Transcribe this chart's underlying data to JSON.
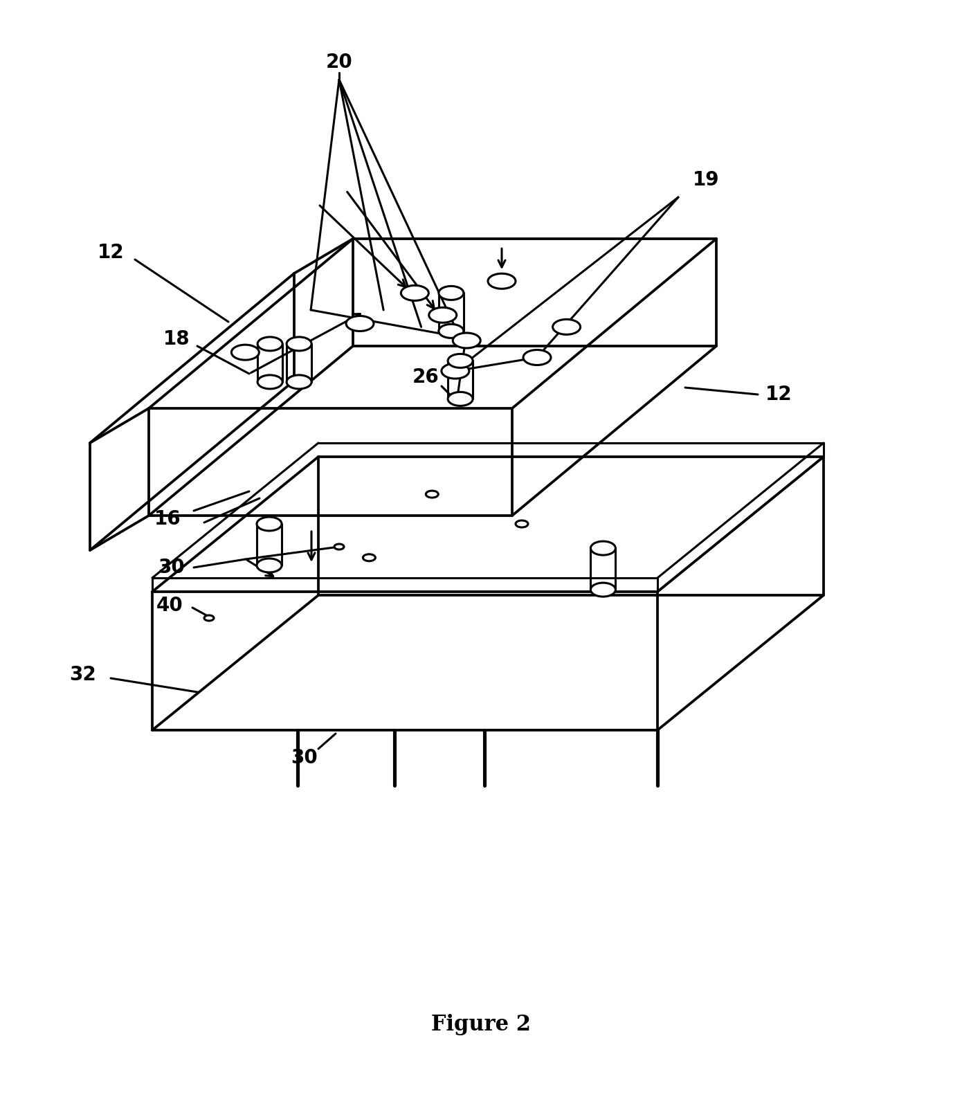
{
  "title": "Figure 2",
  "title_fontsize": 22,
  "label_fontsize": 20,
  "background_color": "#ffffff",
  "line_color": "#000000",
  "line_width": 2.2,
  "fig_width": 13.9,
  "fig_height": 15.88
}
